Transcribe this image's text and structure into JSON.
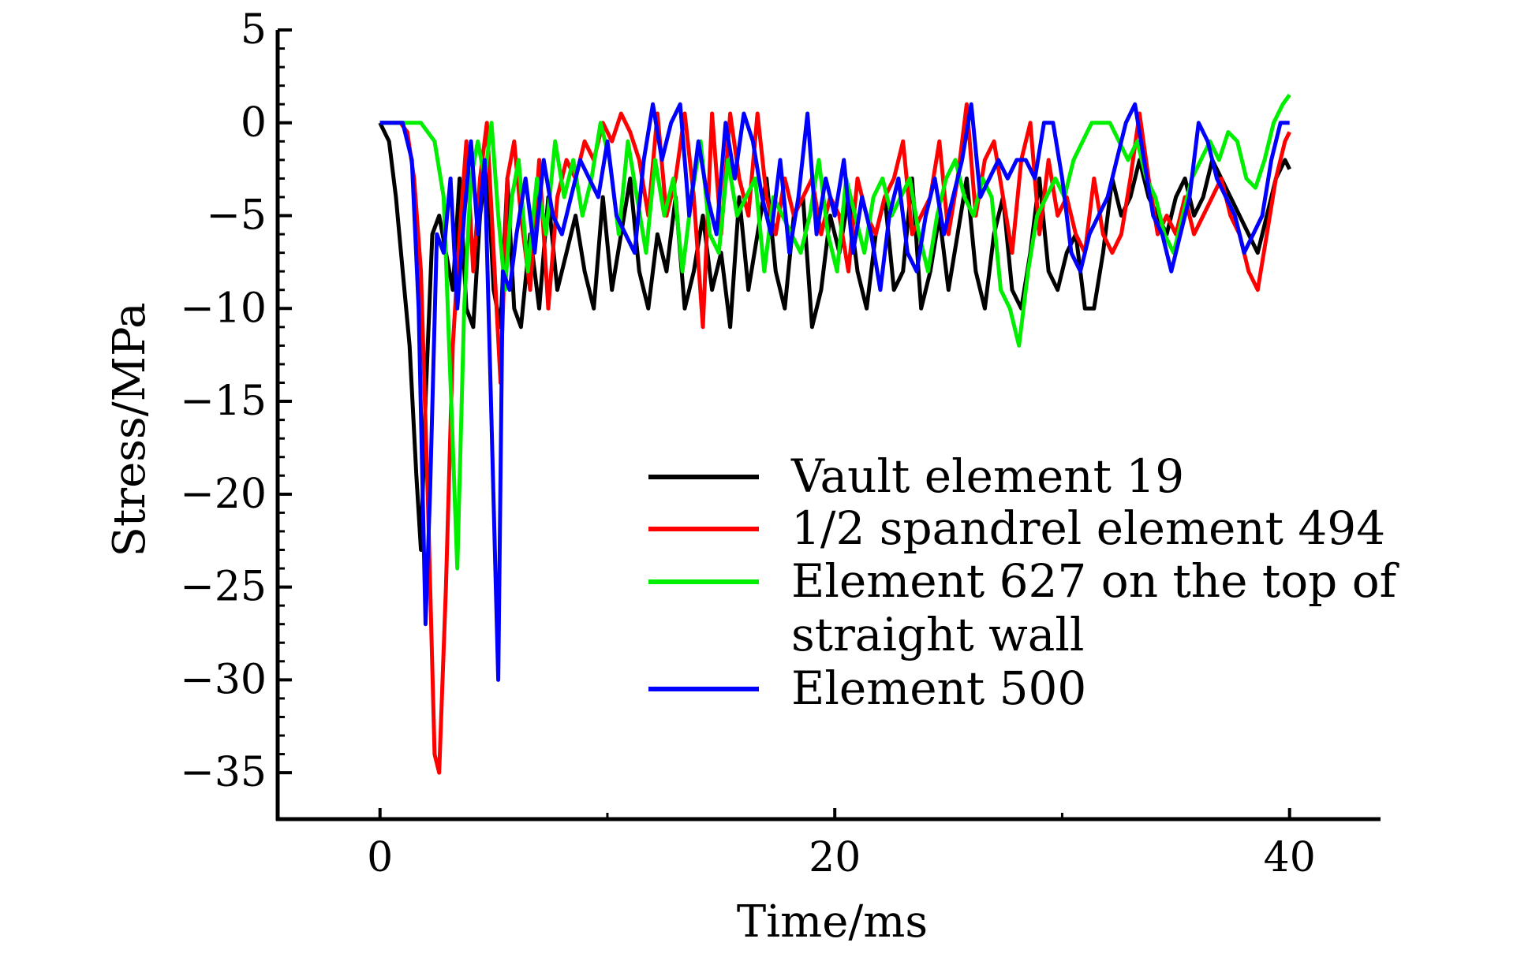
{
  "chart_data": {
    "type": "line",
    "xlabel": "Time/ms",
    "ylabel": "Stress/MPa",
    "xlim": [
      -4.5,
      44
    ],
    "ylim": [
      -37.5,
      5
    ],
    "xticks": [
      0,
      20,
      40
    ],
    "xtick_labels": [
      "0",
      "20",
      "40"
    ],
    "yticks": [
      5,
      0,
      -5,
      -10,
      -15,
      -20,
      -25,
      -30,
      -35
    ],
    "ytick_labels": [
      "5",
      "0",
      "−5",
      "−10",
      "−15",
      "−20",
      "−25",
      "−30",
      "−35"
    ],
    "grid": false,
    "legend_position": "lower-right",
    "series": [
      {
        "name": "Vault element 19",
        "color": "#000000",
        "x": [
          0,
          0.4,
          0.7,
          1.0,
          1.3,
          1.6,
          1.8,
          2.0,
          2.3,
          2.6,
          2.9,
          3.2,
          3.5,
          3.8,
          4.1,
          4.4,
          4.7,
          5.0,
          5.3,
          5.6,
          5.9,
          6.2,
          6.6,
          7.0,
          7.4,
          7.8,
          8.2,
          8.6,
          9.0,
          9.4,
          9.8,
          10.2,
          10.6,
          11.0,
          11.4,
          11.8,
          12.2,
          12.6,
          13.0,
          13.4,
          13.8,
          14.2,
          14.6,
          15.0,
          15.4,
          15.8,
          16.2,
          16.6,
          17.0,
          17.4,
          17.8,
          18.2,
          18.6,
          19.0,
          19.4,
          19.8,
          20.2,
          20.6,
          21.0,
          21.4,
          21.8,
          22.2,
          22.6,
          23.0,
          23.4,
          23.8,
          24.2,
          24.6,
          25.0,
          25.4,
          25.8,
          26.2,
          26.6,
          27.0,
          27.4,
          27.8,
          28.2,
          28.6,
          29.0,
          29.4,
          29.8,
          30.2,
          30.6,
          31.0,
          31.4,
          31.8,
          32.2,
          32.6,
          33.0,
          33.4,
          33.8,
          34.2,
          34.6,
          35.0,
          35.4,
          35.8,
          36.2,
          36.6,
          37.0,
          37.4,
          37.8,
          38.2,
          38.6,
          39.0,
          39.4,
          39.8,
          40.0
        ],
        "values": [
          0,
          -1,
          -4,
          -8,
          -12,
          -19,
          -23,
          -15,
          -6,
          -5,
          -7,
          -9,
          -3,
          -10,
          -11,
          -5,
          -2,
          -9,
          -11,
          -3,
          -10,
          -11,
          -6,
          -10,
          -4,
          -9,
          -7,
          -5,
          -8,
          -10,
          -4,
          -9,
          -6,
          -3,
          -8,
          -10,
          -6,
          -8,
          -4,
          -10,
          -8,
          -5,
          -9,
          -7,
          -11,
          -4,
          -9,
          -6,
          -3,
          -8,
          -10,
          -5,
          -4,
          -11,
          -9,
          -5,
          -7,
          -4,
          -8,
          -10,
          -6,
          -4,
          -9,
          -8,
          -3,
          -10,
          -8,
          -5,
          -9,
          -6,
          -3,
          -8,
          -10,
          -6,
          -4,
          -9,
          -10,
          -7,
          -3,
          -8,
          -9,
          -7,
          -6,
          -10,
          -10,
          -7,
          -3,
          -5,
          -4,
          -2,
          -4,
          -5,
          -6,
          -4,
          -3,
          -5,
          -4,
          -2,
          -3,
          -4,
          -5,
          -6,
          -7,
          -5,
          -3,
          -2,
          -2.5
        ]
      },
      {
        "name": "1/2 spandrel element 494",
        "color": "#ff0000",
        "x": [
          0,
          0.5,
          0.9,
          1.2,
          1.5,
          1.8,
          2.1,
          2.4,
          2.6,
          2.9,
          3.2,
          3.5,
          3.8,
          4.1,
          4.4,
          4.7,
          5.0,
          5.3,
          5.6,
          5.9,
          6.2,
          6.6,
          7.0,
          7.4,
          7.8,
          8.2,
          8.6,
          9.0,
          9.4,
          9.8,
          10.2,
          10.6,
          11.0,
          11.4,
          11.8,
          12.2,
          12.6,
          13.0,
          13.4,
          13.8,
          14.2,
          14.6,
          15.0,
          15.4,
          15.8,
          16.2,
          16.6,
          17.0,
          17.4,
          17.8,
          18.2,
          18.6,
          19.0,
          19.4,
          19.8,
          20.2,
          20.6,
          21.0,
          21.4,
          21.8,
          22.2,
          22.6,
          23.0,
          23.4,
          23.8,
          24.2,
          24.6,
          25.0,
          25.4,
          25.8,
          26.2,
          26.6,
          27.0,
          27.4,
          27.8,
          28.2,
          28.6,
          29.0,
          29.4,
          29.8,
          30.2,
          30.6,
          31.0,
          31.4,
          31.8,
          32.2,
          32.6,
          33.0,
          33.4,
          33.8,
          34.2,
          34.6,
          35.0,
          35.4,
          35.8,
          36.2,
          36.6,
          37.0,
          37.4,
          37.8,
          38.2,
          38.6,
          39.0,
          39.4,
          39.8,
          40.0
        ],
        "values": [
          0,
          0,
          0,
          -0.5,
          -3,
          -8,
          -20,
          -34,
          -35,
          -25,
          -12,
          -6,
          -1,
          -8,
          -3,
          0,
          -7,
          -14,
          -3,
          -1,
          -5,
          -9,
          -2,
          -10,
          -4,
          -2,
          -3,
          -1,
          -2,
          0,
          -1,
          0.5,
          -0.5,
          -2,
          -5,
          0.5,
          -5,
          -3,
          0.5,
          -4,
          -11,
          0.5,
          -6,
          0.5,
          -3,
          -5,
          0.5,
          -4,
          -6,
          -3,
          -5,
          -4,
          -3,
          -6,
          -4,
          -5,
          -8,
          -3,
          -5,
          -6,
          -4,
          -3,
          -1,
          -6,
          -5,
          -4,
          -1,
          -6,
          -3,
          1,
          -5,
          -2,
          -1,
          -4,
          -7,
          -2,
          0,
          -6,
          -2,
          -5,
          -4,
          -6,
          -7,
          -3,
          -6,
          -7,
          -6,
          -3,
          0.5,
          -3,
          -6,
          -5,
          -6,
          -4,
          -6,
          -5,
          -4,
          -3,
          -5,
          -6,
          -8,
          -9,
          -6,
          -3,
          -1,
          -0.5
        ]
      },
      {
        "name": "Element 627 on the top of straight wall",
        "color": "#00ee00",
        "x": [
          0,
          0.6,
          1.2,
          1.8,
          2.4,
          2.8,
          3.1,
          3.4,
          3.7,
          4.0,
          4.3,
          4.6,
          4.9,
          5.2,
          5.5,
          5.8,
          6.1,
          6.5,
          6.9,
          7.3,
          7.7,
          8.1,
          8.5,
          8.9,
          9.3,
          9.7,
          10.1,
          10.5,
          10.9,
          11.3,
          11.7,
          12.1,
          12.5,
          12.9,
          13.3,
          13.7,
          14.1,
          14.5,
          14.9,
          15.3,
          15.7,
          16.1,
          16.5,
          16.9,
          17.3,
          17.7,
          18.1,
          18.5,
          18.9,
          19.3,
          19.7,
          20.1,
          20.5,
          20.9,
          21.3,
          21.7,
          22.1,
          22.5,
          22.9,
          23.3,
          23.7,
          24.1,
          24.5,
          24.9,
          25.3,
          25.7,
          26.1,
          26.5,
          26.9,
          27.3,
          27.7,
          28.1,
          28.5,
          28.9,
          29.3,
          29.7,
          30.1,
          30.5,
          30.9,
          31.3,
          31.7,
          32.1,
          32.5,
          32.9,
          33.3,
          33.7,
          34.1,
          34.5,
          34.9,
          35.3,
          35.7,
          36.1,
          36.5,
          36.9,
          37.3,
          37.7,
          38.1,
          38.5,
          38.9,
          39.3,
          39.7,
          40.0
        ],
        "values": [
          0,
          0,
          0,
          0,
          -1,
          -4,
          -14,
          -24,
          -10,
          -3,
          -1,
          -3,
          0,
          -5,
          -9,
          -4,
          -2,
          -8,
          -3,
          -6,
          -1,
          -4,
          -2,
          -5,
          -3,
          0,
          -2,
          -6,
          -1,
          -4,
          -7,
          -2,
          -5,
          -3,
          -8,
          -4,
          -1,
          -6,
          -7,
          -2,
          -5,
          -4,
          -3,
          -8,
          -4,
          -5,
          -6,
          -7,
          -5,
          -2,
          -6,
          -8,
          -3,
          -5,
          -7,
          -4,
          -3,
          -5,
          -4,
          -3,
          -6,
          -8,
          -5,
          -3,
          -2,
          -4,
          -5,
          -3,
          -4,
          -9,
          -10,
          -12,
          -8,
          -5,
          -4,
          -3,
          -4,
          -2,
          -1,
          0,
          0,
          0,
          -1,
          -2,
          -1,
          -3,
          -4,
          -6,
          -7,
          -5,
          -3,
          -2,
          -1,
          -2,
          -0.5,
          -1,
          -3,
          -3.5,
          -2,
          0,
          1,
          1.5
        ]
      },
      {
        "name": "Element 500",
        "color": "#0000ff",
        "x": [
          0,
          0.5,
          1.0,
          1.4,
          1.7,
          2.0,
          2.2,
          2.5,
          2.8,
          3.1,
          3.4,
          3.7,
          4.0,
          4.3,
          4.6,
          4.9,
          5.2,
          5.4,
          5.7,
          6.0,
          6.4,
          6.8,
          7.2,
          7.6,
          8.0,
          8.4,
          8.8,
          9.2,
          9.6,
          10.0,
          10.4,
          10.8,
          11.2,
          11.6,
          12.0,
          12.4,
          12.8,
          13.2,
          13.6,
          14.0,
          14.4,
          14.8,
          15.2,
          15.6,
          16.0,
          16.4,
          16.8,
          17.2,
          17.6,
          18.0,
          18.4,
          18.8,
          19.2,
          19.6,
          20.0,
          20.4,
          20.8,
          21.2,
          21.6,
          22.0,
          22.4,
          22.8,
          23.2,
          23.6,
          24.0,
          24.4,
          24.8,
          25.2,
          25.6,
          26.0,
          26.4,
          26.8,
          27.2,
          27.6,
          28.0,
          28.4,
          28.8,
          29.2,
          29.6,
          30.0,
          30.4,
          30.8,
          31.2,
          31.6,
          32.0,
          32.4,
          32.8,
          33.2,
          33.6,
          34.0,
          34.4,
          34.8,
          35.2,
          35.6,
          36.0,
          36.4,
          36.8,
          37.2,
          37.6,
          38.0,
          38.4,
          38.8,
          39.2,
          39.6,
          40.0
        ],
        "values": [
          0,
          0,
          0,
          -2,
          -10,
          -27,
          -20,
          -6,
          -7,
          -3,
          -10,
          -5,
          -1,
          -6,
          -2,
          -16,
          -30,
          -8,
          -9,
          -6,
          -3,
          -7,
          -2,
          -5,
          -6,
          -4,
          -2,
          -3,
          -4,
          -1,
          -5,
          -6,
          -7,
          -2,
          1,
          -2,
          0,
          1,
          -5,
          -1,
          -4,
          -6,
          0,
          -3,
          0.5,
          -1,
          -4,
          -6,
          -2,
          -7,
          -4,
          0.5,
          -6,
          -3,
          -5,
          -2,
          -7,
          -4,
          -6,
          -9,
          -5,
          -3,
          -7,
          -8,
          -5,
          -3,
          -6,
          -4,
          -2,
          1,
          -4,
          -3,
          -2,
          -3,
          -2,
          -2,
          -3,
          0,
          0,
          -3,
          -7,
          -8,
          -6,
          -5,
          -4,
          -2,
          0,
          1,
          -2,
          -5,
          -6,
          -8,
          -6,
          -4,
          0,
          -1,
          -3,
          -4,
          -5,
          -7,
          -6,
          -5,
          -2,
          0,
          0
        ]
      }
    ]
  }
}
